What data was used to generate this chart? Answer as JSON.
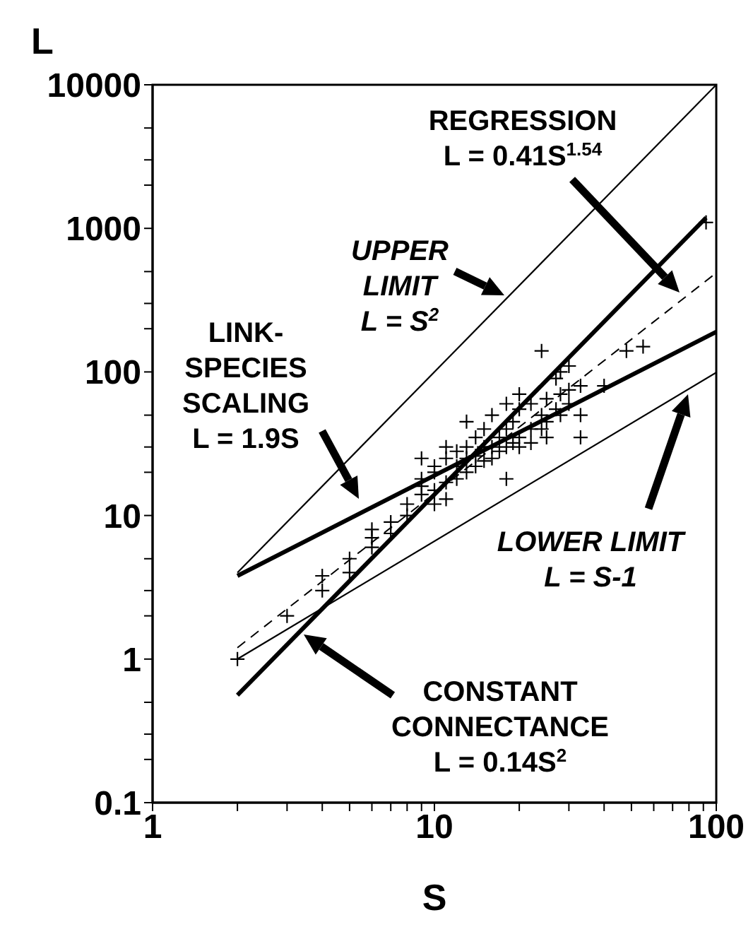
{
  "chart_data": {
    "type": "scatter",
    "xlabel": "S",
    "ylabel": "L",
    "log": "xy",
    "grid": false,
    "legend": false,
    "marker": "cross",
    "xlim": [
      1,
      100
    ],
    "ylim": [
      0.1,
      10000
    ],
    "xticks": [
      1,
      {
        "value": 2,
        "label": null
      },
      {
        "value": 3,
        "label": null
      },
      {
        "value": 4,
        "label": null
      },
      {
        "value": 5,
        "label": null
      },
      {
        "value": 6,
        "label": null
      },
      {
        "value": 7,
        "label": null
      },
      {
        "value": 8,
        "label": null
      },
      {
        "value": 9,
        "label": null
      },
      10,
      {
        "value": 20,
        "label": null
      },
      {
        "value": 30,
        "label": null
      },
      {
        "value": 40,
        "label": null
      },
      {
        "value": 50,
        "label": null
      },
      {
        "value": 60,
        "label": null
      },
      {
        "value": 70,
        "label": null
      },
      {
        "value": 80,
        "label": null
      },
      {
        "value": 90,
        "label": null
      },
      100
    ],
    "yticks": [
      0.1,
      {
        "value": 0.2,
        "label": null
      },
      {
        "value": 0.3,
        "label": null
      },
      {
        "value": 0.5,
        "label": null
      },
      1,
      {
        "value": 2,
        "label": null
      },
      {
        "value": 3,
        "label": null
      },
      {
        "value": 5,
        "label": null
      },
      10,
      {
        "value": 20,
        "label": null
      },
      {
        "value": 30,
        "label": null
      },
      {
        "value": 50,
        "label": null
      },
      100,
      {
        "value": 200,
        "label": null
      },
      {
        "value": 300,
        "label": null
      },
      {
        "value": 500,
        "label": null
      },
      1000,
      {
        "value": 2000,
        "label": null
      },
      {
        "value": 3000,
        "label": null
      },
      {
        "value": 5000,
        "label": null
      },
      10000
    ],
    "series": [
      {
        "type": "scatter",
        "color": "#000000",
        "x": [
          2,
          3,
          4,
          4,
          5,
          5,
          6,
          6,
          6,
          7,
          7,
          8,
          8,
          9,
          9,
          9,
          9,
          10,
          10,
          10,
          10,
          11,
          11,
          11,
          11,
          12,
          12,
          12,
          13,
          13,
          13,
          13,
          14,
          14,
          14,
          15,
          15,
          15,
          16,
          16,
          16,
          17,
          17,
          18,
          18,
          18,
          18,
          19,
          19,
          20,
          20,
          20,
          20,
          22,
          22,
          22,
          24,
          24,
          24,
          25,
          25,
          25,
          27,
          27,
          28,
          28,
          28,
          30,
          30,
          30,
          33,
          33,
          33,
          40,
          48,
          55,
          92
        ],
        "values": [
          1,
          2,
          3,
          3.8,
          4,
          5,
          6,
          7,
          8,
          9,
          7.5,
          10,
          12,
          14,
          18,
          25,
          16,
          12,
          15,
          20,
          22,
          13,
          17,
          25,
          30,
          18,
          22,
          28,
          20,
          25,
          30,
          45,
          22,
          26,
          35,
          24,
          30,
          40,
          25,
          30,
          50,
          28,
          35,
          18,
          30,
          40,
          60,
          32,
          45,
          30,
          35,
          55,
          70,
          32,
          40,
          60,
          40,
          50,
          140,
          35,
          45,
          65,
          55,
          90,
          50,
          70,
          100,
          60,
          75,
          110,
          35,
          50,
          80,
          80,
          140,
          150,
          1100
        ]
      },
      {
        "type": "line",
        "marker": "none",
        "color": "#000000",
        "x": [
          2,
          100
        ],
        "values": [
          4,
          10000
        ]
      },
      {
        "type": "line",
        "marker": "none",
        "color": "#000000",
        "line_style": "dashed",
        "x": [
          2,
          100
        ],
        "values": [
          1.2,
          490
        ]
      },
      {
        "type": "line",
        "marker": "none",
        "color": "#000000",
        "x": [
          2,
          92
        ],
        "values": [
          0.56,
          1185
        ]
      },
      {
        "type": "line",
        "marker": "none",
        "color": "#000000",
        "x": [
          2,
          100
        ],
        "values": [
          3.8,
          190
        ]
      },
      {
        "type": "line",
        "marker": "none",
        "color": "#000000",
        "x": [
          2,
          100
        ],
        "values": [
          1,
          99
        ]
      }
    ],
    "annotations": [
      "REGRESSION\nL = 0.41S$^{1.54}$",
      "UPPER\nLIMIT\nL = S$^{2}$",
      "LINK-\nSPECIES\nSCALING\nL = 1.9S",
      "LOWER LIMIT\nL = S-1",
      "CONSTANT\nCONNECTANCE\nL = 0.14S$^{2}$"
    ]
  }
}
